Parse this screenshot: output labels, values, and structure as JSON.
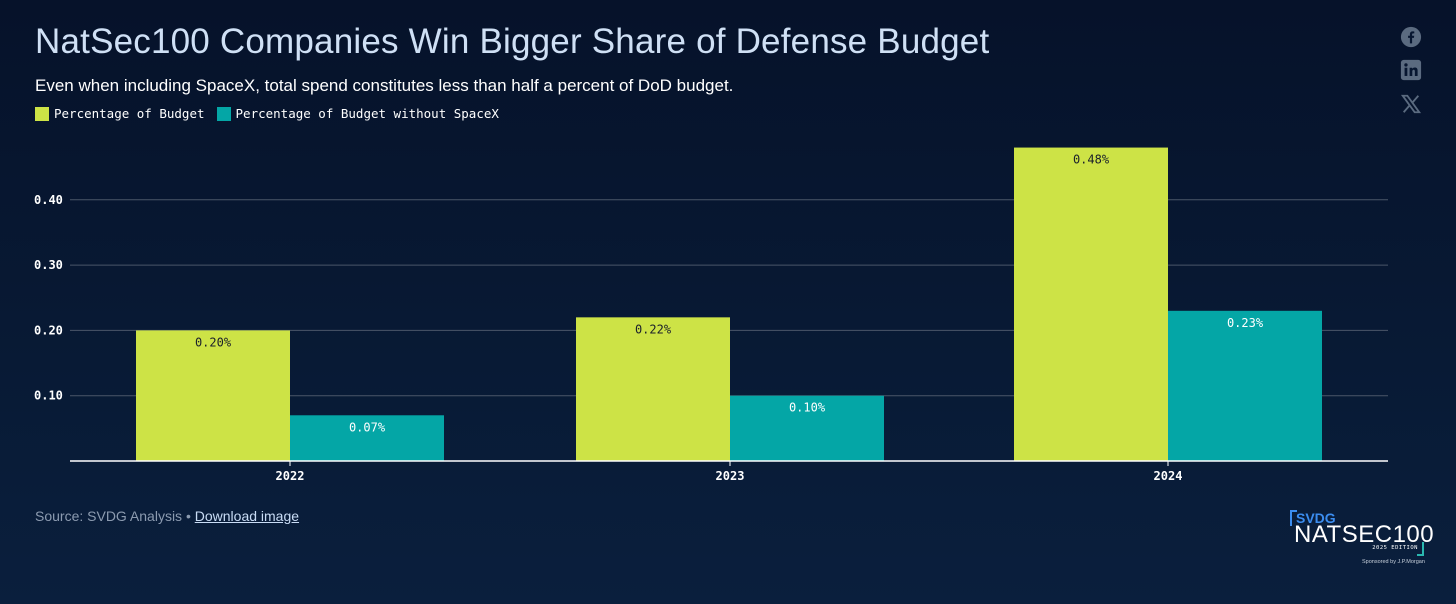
{
  "header": {
    "title": "NatSec100 Companies Win Bigger Share of Defense Budget",
    "subtitle": "Even when including SpaceX, total spend constitutes less than half a percent of DoD budget."
  },
  "share_icons": [
    "facebook-icon",
    "linkedin-icon",
    "x-icon"
  ],
  "chart_data": {
    "type": "bar",
    "categories": [
      "2022",
      "2023",
      "2024"
    ],
    "series": [
      {
        "name": "Percentage of Budget",
        "values": [
          0.2,
          0.22,
          0.48
        ],
        "labels": [
          "0.20%",
          "0.22%",
          "0.48%"
        ],
        "color": "#cde346"
      },
      {
        "name": "Percentage of Budget without SpaceX",
        "values": [
          0.07,
          0.1,
          0.23
        ],
        "labels": [
          "0.07%",
          "0.10%",
          "0.23%"
        ],
        "color": "#04a6a6"
      }
    ],
    "y_ticks": [
      0.1,
      0.2,
      0.3,
      0.4
    ],
    "y_tick_labels": [
      "0.10",
      "0.20",
      "0.30",
      "0.40"
    ],
    "ylim": [
      0,
      0.5
    ],
    "grid": true,
    "legend_position": "top-left"
  },
  "footer": {
    "source_text": "Source: SVDG Analysis •",
    "download_label": "Download image"
  },
  "logo": {
    "brand": "SVDG",
    "name": "NATSEC100",
    "edition": "2025 EDITION",
    "sponsor": "Sponsored by J.P.Morgan"
  },
  "colors": {
    "background": "#071630",
    "grid": "#4a5668",
    "axis": "#ffffff",
    "text": "#ffffff"
  }
}
